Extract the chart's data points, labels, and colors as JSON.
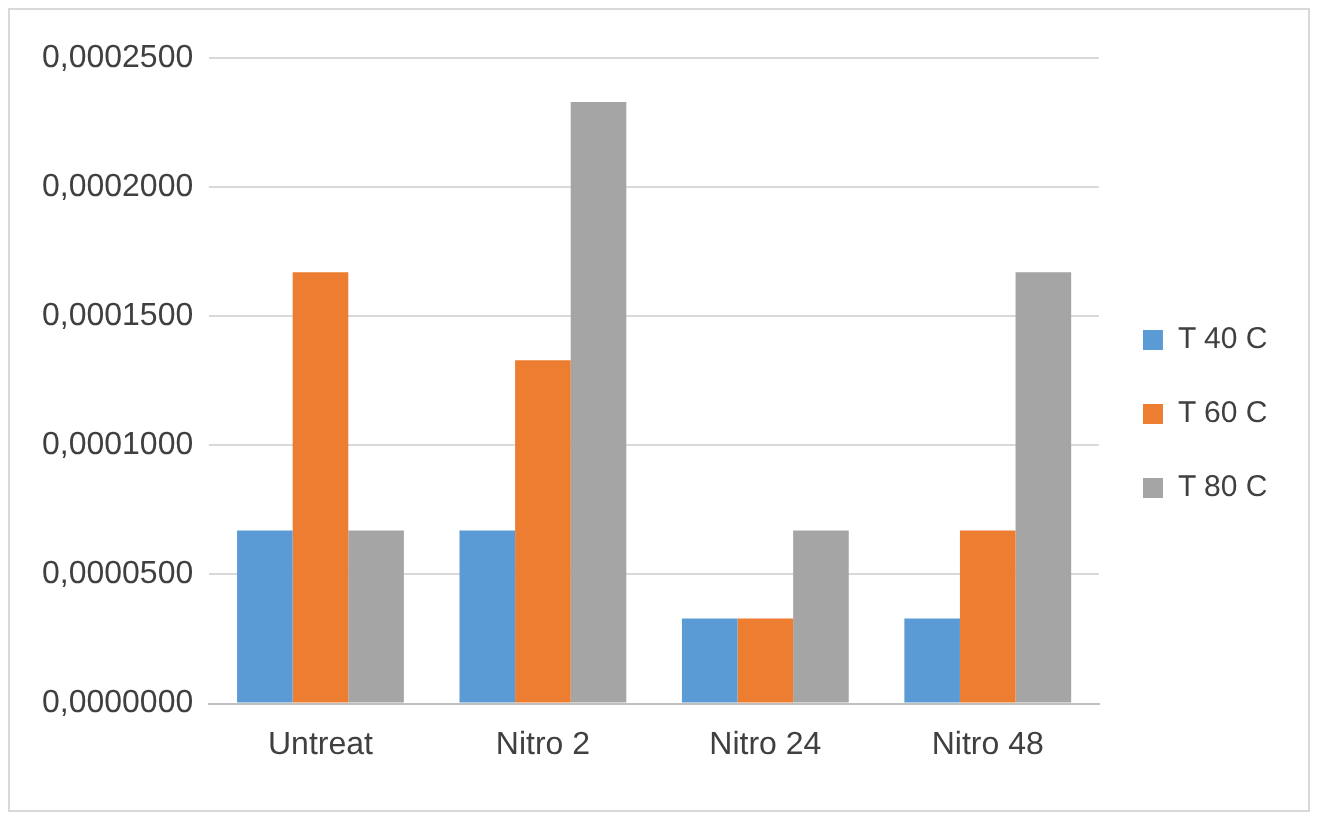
{
  "chart_data": {
    "type": "bar",
    "categories": [
      "Untreat",
      "Nitro 2",
      "Nitro 24",
      "Nitro 48"
    ],
    "series": [
      {
        "name": "T 40 C",
        "color": "#5b9bd5",
        "values": [
          6.7e-05,
          6.7e-05,
          3.3e-05,
          3.3e-05
        ]
      },
      {
        "name": "T 60 C",
        "color": "#ed7d31",
        "values": [
          0.000167,
          0.000133,
          3.3e-05,
          6.7e-05
        ]
      },
      {
        "name": "T 80 C",
        "color": "#a5a5a5",
        "values": [
          6.7e-05,
          0.000233,
          6.7e-05,
          0.000167
        ]
      }
    ],
    "ylim": [
      0,
      0.00025
    ],
    "yticks": [
      {
        "value": 0,
        "label": "0,0000000"
      },
      {
        "value": 5e-05,
        "label": "0,0000500"
      },
      {
        "value": 0.0001,
        "label": "0,0001000"
      },
      {
        "value": 0.00015,
        "label": "0,0001500"
      },
      {
        "value": 0.0002,
        "label": "0,0002000"
      },
      {
        "value": 0.00025,
        "label": "0,0002500"
      }
    ],
    "grid": "y",
    "legend": "right"
  }
}
